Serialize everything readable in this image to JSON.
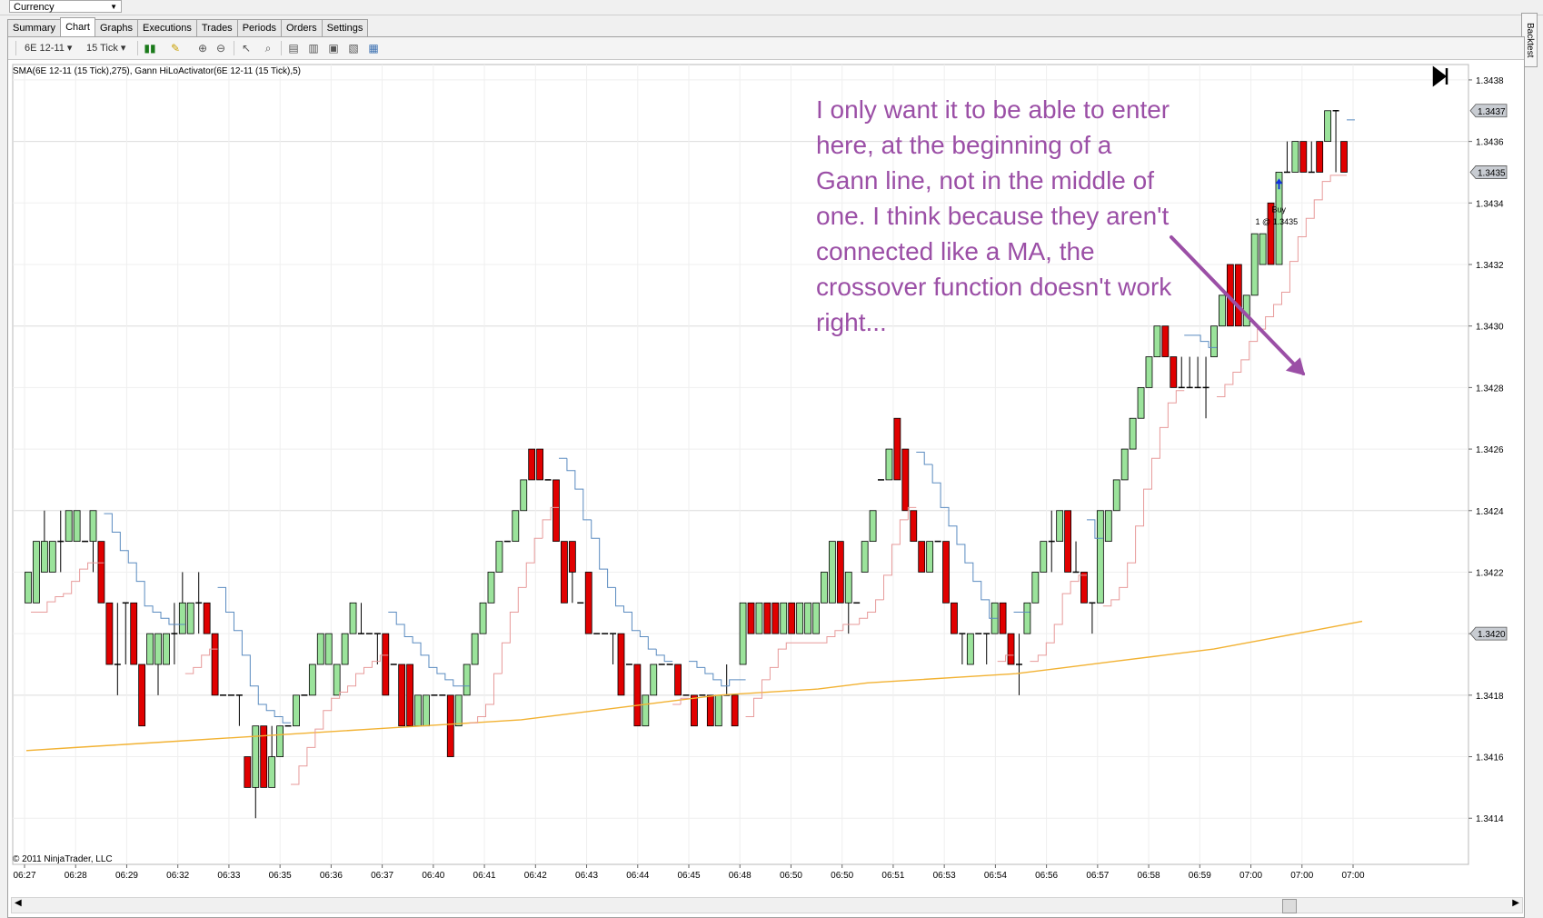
{
  "instrument_selector": {
    "value": "Currency"
  },
  "tabs": [
    {
      "label": "Summary",
      "active": false
    },
    {
      "label": "Chart",
      "active": true
    },
    {
      "label": "Graphs",
      "active": false
    },
    {
      "label": "Executions",
      "active": false
    },
    {
      "label": "Trades",
      "active": false
    },
    {
      "label": "Periods",
      "active": false
    },
    {
      "label": "Orders",
      "active": false
    },
    {
      "label": "Settings",
      "active": false
    }
  ],
  "side_tab": {
    "label": "Backtest"
  },
  "toolbar": {
    "instrument": "6E 12-11",
    "period": "15 Tick",
    "icons": [
      "candlestick-style-icon",
      "pencil-draw-icon",
      "zoom-in-icon",
      "zoom-out-icon",
      "cursor-icon",
      "magnifier-icon",
      "data-box-icon",
      "bar-spacing-icon",
      "chart-properties-icon",
      "strategy-icon",
      "indicator-icon"
    ]
  },
  "plot_label": "SMA(6E 12-11 (15 Tick),275), Gann HiLoActivator(6E 12-11 (15 Tick),5)",
  "copyright": "© 2011 NinjaTrader, LLC",
  "annotation": "I only want it to be able to enter here, at the beginning of a Gann line, not in the middle of one.  I think because they aren't connected like a MA, the crossover function doesn't work right...",
  "colors": {
    "up_bar": "#9be39b",
    "down_bar": "#e00000",
    "sma": "#f2b233",
    "gann_blue": "#5a8bc0",
    "gann_red": "#e79a9a",
    "annotation": "#9b4fa6",
    "arrow": "#9b4fa6"
  },
  "trade_marker": {
    "label": "Buy",
    "detail": "1 @ 1.3435"
  },
  "price_markers": [
    "1.3437",
    "1.3435",
    "1.3420"
  ],
  "chart_data": {
    "type": "candlestick",
    "ylim": [
      1.34125,
      1.34385
    ],
    "y_ticks": [
      "1.3438",
      "1.3436",
      "1.3434",
      "1.3432",
      "1.3430",
      "1.3428",
      "1.3426",
      "1.3424",
      "1.3422",
      "1.3420",
      "1.3418",
      "1.3416",
      "1.3414"
    ],
    "x_tick_labels": [
      "06:27",
      "06:28",
      "06:29",
      "06:32",
      "06:33",
      "06:35",
      "06:36",
      "06:37",
      "06:40",
      "06:41",
      "06:42",
      "06:43",
      "06:44",
      "06:45",
      "06:48",
      "06:50",
      "06:50",
      "06:51",
      "06:53",
      "06:54",
      "06:56",
      "06:57",
      "06:58",
      "06:59",
      "07:00",
      "07:00",
      "07:00"
    ],
    "candles": [
      [
        1.3421,
        1.3422,
        1.3422,
        1.3421
      ],
      [
        1.3421,
        1.3423,
        1.3423,
        1.3421
      ],
      [
        1.3422,
        1.3424,
        1.3423,
        1.3422
      ],
      [
        1.3422,
        1.3423,
        1.3423,
        1.3422
      ],
      [
        1.3423,
        1.3424,
        1.3423,
        1.3422
      ],
      [
        1.3423,
        1.3424,
        1.3424,
        1.3423
      ],
      [
        1.3423,
        1.3424,
        1.3424,
        1.3423
      ],
      [
        1.3423,
        1.3423,
        1.3423,
        1.3423
      ],
      [
        1.3423,
        1.3424,
        1.3424,
        1.3422
      ],
      [
        1.3423,
        1.3423,
        1.3421,
        1.3421
      ],
      [
        1.3421,
        1.3421,
        1.3419,
        1.3419
      ],
      [
        1.3419,
        1.3421,
        1.3419,
        1.3418
      ],
      [
        1.3421,
        1.3421,
        1.3421,
        1.3419
      ],
      [
        1.3421,
        1.3421,
        1.3419,
        1.3419
      ],
      [
        1.3419,
        1.3419,
        1.3417,
        1.3417
      ],
      [
        1.3419,
        1.342,
        1.342,
        1.3419
      ],
      [
        1.3419,
        1.342,
        1.342,
        1.3418
      ],
      [
        1.3419,
        1.342,
        1.342,
        1.3419
      ],
      [
        1.342,
        1.3421,
        1.342,
        1.3419
      ],
      [
        1.342,
        1.3422,
        1.3421,
        1.342
      ],
      [
        1.342,
        1.3421,
        1.3421,
        1.342
      ],
      [
        1.3421,
        1.3422,
        1.3421,
        1.342
      ],
      [
        1.3421,
        1.3421,
        1.342,
        1.342
      ],
      [
        1.342,
        1.342,
        1.3418,
        1.3418
      ],
      [
        1.3418,
        1.3418,
        1.3418,
        1.3418
      ],
      [
        1.3418,
        1.3418,
        1.3418,
        1.3418
      ],
      [
        1.3418,
        1.3418,
        1.3418,
        1.3417
      ],
      [
        1.3416,
        1.3416,
        1.3415,
        1.3415
      ],
      [
        1.3415,
        1.3417,
        1.3417,
        1.3414
      ],
      [
        1.3417,
        1.3417,
        1.3415,
        1.3415
      ],
      [
        1.3415,
        1.3417,
        1.3416,
        1.3415
      ],
      [
        1.3416,
        1.3417,
        1.3417,
        1.3416
      ],
      [
        1.3417,
        1.3417,
        1.3417,
        1.3417
      ],
      [
        1.3417,
        1.3418,
        1.3418,
        1.3417
      ],
      [
        1.3418,
        1.3418,
        1.3418,
        1.3418
      ],
      [
        1.3418,
        1.3419,
        1.3419,
        1.3418
      ],
      [
        1.3419,
        1.342,
        1.342,
        1.3419
      ],
      [
        1.3419,
        1.342,
        1.342,
        1.3419
      ],
      [
        1.3418,
        1.3419,
        1.3419,
        1.3418
      ],
      [
        1.3419,
        1.342,
        1.342,
        1.3419
      ],
      [
        1.342,
        1.3421,
        1.3421,
        1.342
      ],
      [
        1.342,
        1.3421,
        1.342,
        1.342
      ],
      [
        1.342,
        1.342,
        1.342,
        1.342
      ],
      [
        1.342,
        1.342,
        1.342,
        1.3419
      ],
      [
        1.342,
        1.342,
        1.3418,
        1.3418
      ],
      [
        1.3419,
        1.3419,
        1.3419,
        1.3419
      ],
      [
        1.3419,
        1.3419,
        1.3417,
        1.3417
      ],
      [
        1.3419,
        1.3419,
        1.3417,
        1.3417
      ],
      [
        1.3417,
        1.3418,
        1.3418,
        1.3417
      ],
      [
        1.3417,
        1.3418,
        1.3418,
        1.3417
      ],
      [
        1.3418,
        1.3418,
        1.3418,
        1.3418
      ],
      [
        1.3418,
        1.3418,
        1.3418,
        1.3418
      ],
      [
        1.3418,
        1.3418,
        1.3416,
        1.3416
      ],
      [
        1.3417,
        1.3418,
        1.3418,
        1.3417
      ],
      [
        1.3418,
        1.3419,
        1.3419,
        1.3418
      ],
      [
        1.3419,
        1.342,
        1.342,
        1.3419
      ],
      [
        1.342,
        1.3421,
        1.3421,
        1.342
      ],
      [
        1.3421,
        1.3422,
        1.3422,
        1.3421
      ],
      [
        1.3422,
        1.3423,
        1.3423,
        1.3422
      ],
      [
        1.3423,
        1.3423,
        1.3423,
        1.3423
      ],
      [
        1.3423,
        1.3424,
        1.3424,
        1.3423
      ],
      [
        1.3424,
        1.3425,
        1.3425,
        1.3424
      ],
      [
        1.3426,
        1.3426,
        1.3425,
        1.3425
      ],
      [
        1.3426,
        1.3426,
        1.3425,
        1.3425
      ],
      [
        1.3425,
        1.3425,
        1.3425,
        1.3425
      ],
      [
        1.3425,
        1.3425,
        1.3423,
        1.3423
      ],
      [
        1.3423,
        1.3423,
        1.3421,
        1.3421
      ],
      [
        1.3423,
        1.3423,
        1.3422,
        1.3421
      ],
      [
        1.3421,
        1.3421,
        1.3421,
        1.3421
      ],
      [
        1.3422,
        1.3422,
        1.342,
        1.342
      ],
      [
        1.342,
        1.342,
        1.342,
        1.342
      ],
      [
        1.342,
        1.342,
        1.342,
        1.342
      ],
      [
        1.342,
        1.342,
        1.342,
        1.3419
      ],
      [
        1.342,
        1.342,
        1.3418,
        1.3418
      ],
      [
        1.3419,
        1.3419,
        1.3419,
        1.3419
      ],
      [
        1.3419,
        1.3419,
        1.3417,
        1.3417
      ],
      [
        1.3417,
        1.3418,
        1.3418,
        1.3417
      ],
      [
        1.3418,
        1.3419,
        1.3419,
        1.3418
      ],
      [
        1.3419,
        1.3419,
        1.3419,
        1.3419
      ],
      [
        1.3419,
        1.3419,
        1.3419,
        1.3419
      ],
      [
        1.3419,
        1.3419,
        1.3418,
        1.3418
      ],
      [
        1.3418,
        1.3418,
        1.3418,
        1.3418
      ],
      [
        1.3418,
        1.3418,
        1.3417,
        1.3417
      ],
      [
        1.3418,
        1.3418,
        1.3418,
        1.3418
      ],
      [
        1.3418,
        1.3418,
        1.3417,
        1.3417
      ],
      [
        1.3417,
        1.3418,
        1.3418,
        1.3417
      ],
      [
        1.3418,
        1.3419,
        1.3418,
        1.3418
      ],
      [
        1.3418,
        1.3418,
        1.3417,
        1.3417
      ],
      [
        1.3419,
        1.3421,
        1.3421,
        1.3419
      ],
      [
        1.3421,
        1.3421,
        1.342,
        1.342
      ],
      [
        1.342,
        1.3421,
        1.3421,
        1.342
      ],
      [
        1.3421,
        1.3421,
        1.342,
        1.342
      ],
      [
        1.3421,
        1.3421,
        1.342,
        1.342
      ],
      [
        1.342,
        1.3421,
        1.3421,
        1.342
      ],
      [
        1.3421,
        1.3421,
        1.342,
        1.342
      ],
      [
        1.342,
        1.3421,
        1.3421,
        1.342
      ],
      [
        1.342,
        1.3421,
        1.3421,
        1.342
      ],
      [
        1.342,
        1.3421,
        1.3421,
        1.342
      ],
      [
        1.3421,
        1.3422,
        1.3422,
        1.3421
      ],
      [
        1.3421,
        1.3423,
        1.3423,
        1.3421
      ],
      [
        1.3423,
        1.3423,
        1.3421,
        1.3421
      ],
      [
        1.3421,
        1.3422,
        1.3422,
        1.342
      ],
      [
        1.3421,
        1.3421,
        1.3421,
        1.3421
      ],
      [
        1.3422,
        1.3423,
        1.3423,
        1.3422
      ],
      [
        1.3423,
        1.3424,
        1.3424,
        1.3423
      ],
      [
        1.3425,
        1.3425,
        1.3425,
        1.3425
      ],
      [
        1.3425,
        1.3426,
        1.3426,
        1.3425
      ],
      [
        1.3427,
        1.3427,
        1.3425,
        1.3425
      ],
      [
        1.3426,
        1.3426,
        1.3424,
        1.3424
      ],
      [
        1.3424,
        1.3424,
        1.3423,
        1.3423
      ],
      [
        1.3423,
        1.3423,
        1.3422,
        1.3422
      ],
      [
        1.3422,
        1.3423,
        1.3423,
        1.3422
      ],
      [
        1.3423,
        1.3423,
        1.3423,
        1.3423
      ],
      [
        1.3423,
        1.3423,
        1.3421,
        1.3421
      ],
      [
        1.3421,
        1.3421,
        1.342,
        1.342
      ],
      [
        1.342,
        1.342,
        1.342,
        1.3419
      ],
      [
        1.3419,
        1.342,
        1.342,
        1.3419
      ],
      [
        1.342,
        1.342,
        1.342,
        1.342
      ],
      [
        1.342,
        1.342,
        1.342,
        1.3419
      ],
      [
        1.342,
        1.3421,
        1.3421,
        1.342
      ],
      [
        1.3421,
        1.3421,
        1.342,
        1.342
      ],
      [
        1.342,
        1.342,
        1.3419,
        1.3419
      ],
      [
        1.3419,
        1.342,
        1.3419,
        1.3418
      ],
      [
        1.342,
        1.3421,
        1.3421,
        1.342
      ],
      [
        1.3421,
        1.3422,
        1.3422,
        1.3421
      ],
      [
        1.3422,
        1.3423,
        1.3423,
        1.3422
      ],
      [
        1.3423,
        1.3424,
        1.3423,
        1.3422
      ],
      [
        1.3423,
        1.3424,
        1.3424,
        1.3423
      ],
      [
        1.3424,
        1.3424,
        1.3422,
        1.3422
      ],
      [
        1.3422,
        1.3423,
        1.3422,
        1.3422
      ],
      [
        1.3422,
        1.3422,
        1.3421,
        1.3421
      ],
      [
        1.3421,
        1.3421,
        1.3421,
        1.342
      ],
      [
        1.3421,
        1.3424,
        1.3424,
        1.3421
      ],
      [
        1.3423,
        1.3424,
        1.3424,
        1.3423
      ],
      [
        1.3424,
        1.3425,
        1.3425,
        1.3424
      ],
      [
        1.3425,
        1.3426,
        1.3426,
        1.3425
      ],
      [
        1.3426,
        1.3427,
        1.3427,
        1.3426
      ],
      [
        1.3427,
        1.3428,
        1.3428,
        1.3427
      ],
      [
        1.3428,
        1.3429,
        1.3429,
        1.3428
      ],
      [
        1.3429,
        1.343,
        1.343,
        1.3429
      ],
      [
        1.343,
        1.343,
        1.3429,
        1.3429
      ],
      [
        1.3429,
        1.3429,
        1.3428,
        1.3428
      ],
      [
        1.3428,
        1.3429,
        1.3428,
        1.3428
      ],
      [
        1.3428,
        1.3429,
        1.3428,
        1.3428
      ],
      [
        1.3428,
        1.3429,
        1.3428,
        1.3428
      ],
      [
        1.3428,
        1.3429,
        1.3428,
        1.3427
      ],
      [
        1.3429,
        1.343,
        1.343,
        1.3429
      ],
      [
        1.343,
        1.3431,
        1.3431,
        1.343
      ],
      [
        1.3432,
        1.3432,
        1.343,
        1.343
      ],
      [
        1.3432,
        1.3432,
        1.343,
        1.343
      ],
      [
        1.343,
        1.3431,
        1.3431,
        1.343
      ],
      [
        1.3431,
        1.3433,
        1.3433,
        1.3431
      ],
      [
        1.3432,
        1.3433,
        1.3433,
        1.3432
      ],
      [
        1.3434,
        1.3434,
        1.3432,
        1.3432
      ],
      [
        1.3432,
        1.3435,
        1.3435,
        1.3432
      ],
      [
        1.3435,
        1.3436,
        1.3435,
        1.3435
      ],
      [
        1.3435,
        1.3436,
        1.3436,
        1.3435
      ],
      [
        1.3436,
        1.3436,
        1.3435,
        1.3435
      ],
      [
        1.3435,
        1.3436,
        1.3435,
        1.3435
      ],
      [
        1.3436,
        1.3436,
        1.3435,
        1.3435
      ],
      [
        1.3436,
        1.3437,
        1.3437,
        1.3436
      ],
      [
        1.3437,
        1.3437,
        1.3437,
        1.3435
      ],
      [
        1.3436,
        1.3436,
        1.3435,
        1.3435
      ]
    ],
    "series": [
      {
        "name": "SMA",
        "values": [
          1.34162,
          1.34163,
          1.34164,
          1.34165,
          1.34166,
          1.34167,
          1.34168,
          1.34169,
          1.3417,
          1.34171,
          1.34172,
          1.34174,
          1.34176,
          1.34178,
          1.3418,
          1.34181,
          1.34182,
          1.34184,
          1.34185,
          1.34186,
          1.34187,
          1.34189,
          1.34191,
          1.34193,
          1.34195,
          1.34198,
          1.34201,
          1.34204
        ]
      },
      {
        "name": "Gann HiLoActivator"
      }
    ]
  }
}
